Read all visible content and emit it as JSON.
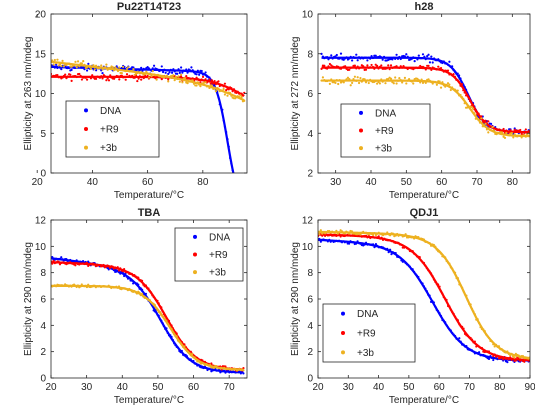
{
  "chart_data": [
    {
      "type": "scatter",
      "title": "Pu22T14T23",
      "xlabel": "Temperature/°C",
      "ylabel": "Ellipticity at 263 nm/mdeg",
      "xlim": [
        25,
        96
      ],
      "ylim": [
        0,
        20
      ],
      "xticks": [
        20,
        40,
        60,
        80
      ],
      "yticks": [
        0,
        5,
        10,
        15,
        20
      ],
      "legend": {
        "position": "center-left"
      },
      "series": [
        {
          "name": "DNA",
          "color": "#0000ff",
          "model": "down",
          "top": 13.6,
          "top_slope": -0.01,
          "bottom": -5,
          "bottom_slope": 0,
          "tm": 89,
          "width": 2.2,
          "x_start": 25,
          "x_end": 95,
          "noise": 0.45
        },
        {
          "name": "+R9",
          "color": "#ff0000",
          "model": "down",
          "top": 12.1,
          "top_slope": 0,
          "bottom": 6,
          "bottom_slope": 0,
          "tm": 98,
          "width": 7,
          "x_start": 25,
          "x_end": 95,
          "noise": 0.4
        },
        {
          "name": "+3b",
          "color": "#edb120",
          "model": "down",
          "top": 15.0,
          "top_slope": -0.04,
          "bottom": 5,
          "bottom_slope": 0,
          "tm": 102,
          "width": 10,
          "x_start": 25,
          "x_end": 95,
          "noise": 0.45
        }
      ]
    },
    {
      "type": "scatter",
      "title": "h28",
      "xlabel": "Temperature/°C",
      "ylabel": "Ellipticity at 272 nm/mdeg",
      "xlim": [
        25,
        85
      ],
      "ylim": [
        2,
        10
      ],
      "xticks": [
        30,
        40,
        50,
        60,
        70,
        80
      ],
      "yticks": [
        2,
        4,
        6,
        8,
        10
      ],
      "legend": {
        "position": "center-right"
      },
      "series": [
        {
          "name": "DNA",
          "color": "#0000ff",
          "model": "down",
          "top": 7.8,
          "top_slope": 0,
          "bottom": 4.05,
          "bottom_slope": 0,
          "tm": 67.5,
          "width": 2.5,
          "x_start": 26,
          "x_end": 85,
          "noise": 0.18
        },
        {
          "name": "+R9",
          "color": "#ff0000",
          "model": "down",
          "top": 7.3,
          "top_slope": 0,
          "bottom": 4.05,
          "bottom_slope": 0,
          "tm": 68,
          "width": 2.5,
          "x_start": 26,
          "x_end": 85,
          "noise": 0.15
        },
        {
          "name": "+3b",
          "color": "#edb120",
          "model": "down",
          "top": 6.65,
          "top_slope": 0,
          "bottom": 3.85,
          "bottom_slope": 0,
          "tm": 68,
          "width": 2.8,
          "x_start": 26,
          "x_end": 85,
          "noise": 0.2
        }
      ]
    },
    {
      "type": "scatter",
      "title": "TBA",
      "xlabel": "Temperature/°C",
      "ylabel": "Ellipticity at 290 nm/mdeg",
      "xlim": [
        20,
        75
      ],
      "ylim": [
        0,
        12
      ],
      "xticks": [
        20,
        30,
        40,
        50,
        60,
        70
      ],
      "yticks": [
        0,
        2,
        4,
        6,
        8,
        10,
        12
      ],
      "legend": {
        "position": "top-right"
      },
      "series": [
        {
          "name": "DNA",
          "color": "#0000ff",
          "model": "down",
          "top": 9.7,
          "top_slope": -0.03,
          "bottom": 0.4,
          "bottom_slope": 0,
          "tm": 51,
          "width": 4.2,
          "x_start": 20,
          "x_end": 74,
          "noise": 0.15
        },
        {
          "name": "+R9",
          "color": "#ff0000",
          "model": "down",
          "top": 9.0,
          "top_slope": -0.01,
          "bottom": 0.6,
          "bottom_slope": 0,
          "tm": 52.5,
          "width": 4.2,
          "x_start": 20,
          "x_end": 74,
          "noise": 0.15
        },
        {
          "name": "+3b",
          "color": "#edb120",
          "model": "down",
          "top": 7.0,
          "top_slope": 0,
          "bottom": 0.6,
          "bottom_slope": 0,
          "tm": 53.5,
          "width": 3.8,
          "x_start": 20,
          "x_end": 74,
          "noise": 0.12
        }
      ]
    },
    {
      "type": "scatter",
      "title": "QDJ1",
      "xlabel": "Temperature/°C",
      "ylabel": "Ellipticity at 290 nm/mdeg",
      "xlim": [
        20,
        90
      ],
      "ylim": [
        0,
        12
      ],
      "xticks": [
        20,
        30,
        40,
        50,
        60,
        70,
        80,
        90
      ],
      "yticks": [
        0,
        2,
        4,
        6,
        8,
        10,
        12
      ],
      "legend": {
        "position": "bottom-left"
      },
      "series": [
        {
          "name": "DNA",
          "color": "#0000ff",
          "model": "down",
          "top": 10.7,
          "top_slope": -0.01,
          "bottom": 1.3,
          "bottom_slope": 0,
          "tm": 58,
          "width": 5.5,
          "x_start": 20,
          "x_end": 90,
          "noise": 0.15
        },
        {
          "name": "+R9",
          "color": "#ff0000",
          "model": "down",
          "top": 11.0,
          "top_slope": -0.005,
          "bottom": 1.3,
          "bottom_slope": 0,
          "tm": 62,
          "width": 5.5,
          "x_start": 20,
          "x_end": 90,
          "noise": 0.15
        },
        {
          "name": "+3b",
          "color": "#edb120",
          "model": "down",
          "top": 11.2,
          "top_slope": -0.005,
          "bottom": 1.4,
          "bottom_slope": 0,
          "tm": 69,
          "width": 4.8,
          "x_start": 20,
          "x_end": 90,
          "noise": 0.15
        }
      ]
    }
  ]
}
